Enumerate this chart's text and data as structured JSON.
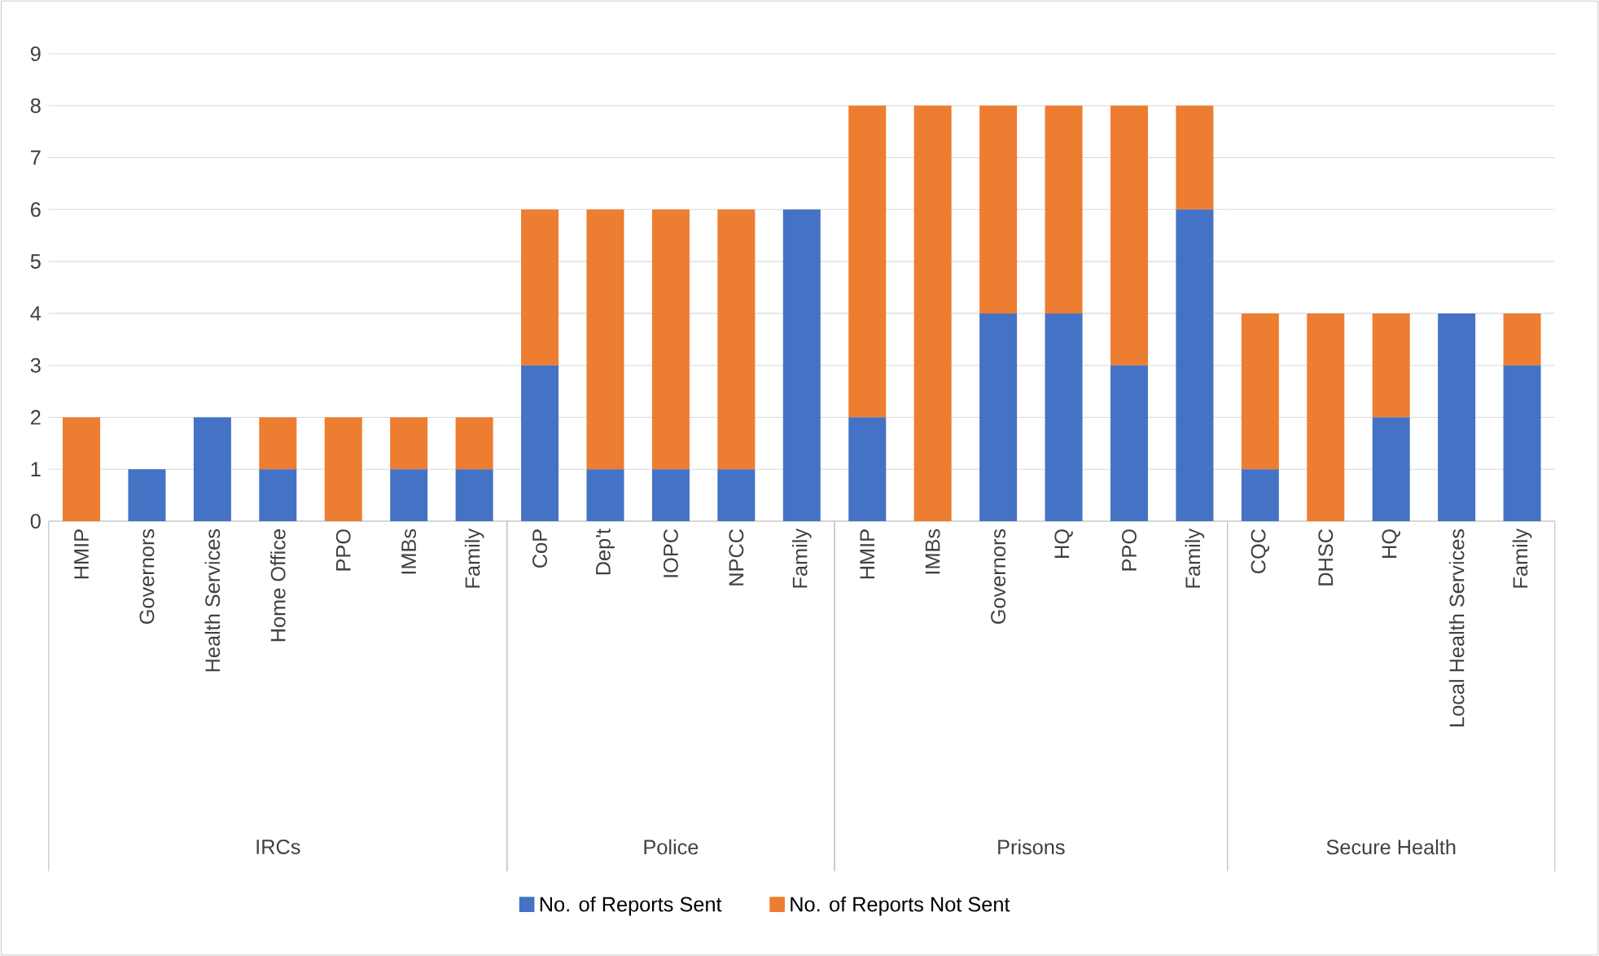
{
  "chart_data": [
    {
      "type": "bar",
      "stacked": true,
      "xlabel": "IRCs",
      "categories": [
        "HMIP",
        "Governors",
        "Health Services",
        "Home Office",
        "PPO",
        "IMBs",
        "Family"
      ],
      "series": [
        {
          "color": "#4472c4",
          "values": [
            0,
            1,
            2,
            1,
            0,
            1,
            1
          ]
        },
        {
          "color": "#ed7d31",
          "values": [
            2,
            0,
            0,
            1,
            2,
            1,
            1
          ]
        }
      ],
      "ylim": [
        0,
        9
      ],
      "yticks": [
        0,
        1,
        2,
        3,
        4,
        5,
        6,
        7,
        8,
        9
      ],
      "grid": "y"
    },
    {
      "type": "bar",
      "stacked": true,
      "xlabel": "Police",
      "categories": [
        "CoP",
        "Dep't",
        "IOPC",
        "NPCC",
        "Family"
      ],
      "series": [
        {
          "name": "No. of Reports Sent",
          "color": "#4472c4",
          "values": [
            3,
            1,
            1,
            1,
            6
          ]
        },
        {
          "name": "No. of Reports Not Sent",
          "color": "#ed7d31",
          "values": [
            3,
            5,
            5,
            5,
            0
          ]
        }
      ],
      "ylim": [
        0,
        9
      ],
      "yticks": [
        0,
        1,
        2,
        3,
        4,
        5,
        6,
        7,
        8,
        9
      ],
      "grid": "y",
      "legend": "bottom",
      "tick_labels": "x"
    },
    {
      "type": "bar",
      "stacked": true,
      "xlabel": "Prisons",
      "categories": [
        "HMIP",
        "IMBs",
        "Governors",
        "HQ",
        "PPO",
        "Family"
      ],
      "series": [
        {
          "color": "#4472c4",
          "values": [
            2,
            0,
            4,
            4,
            3,
            6
          ]
        },
        {
          "color": "#ed7d31",
          "values": [
            6,
            8,
            4,
            4,
            5,
            2
          ]
        }
      ],
      "ylim": [
        0,
        9
      ],
      "yticks": [
        0,
        1,
        2,
        3,
        4,
        5,
        6,
        7,
        8,
        9
      ],
      "grid": "y",
      "tick_labels": "x"
    },
    {
      "type": "bar",
      "stacked": true,
      "xlabel": "Secure Health",
      "categories": [
        "CQC",
        "DHSC",
        "HQ",
        "Local Health Services",
        "Family"
      ],
      "series": [
        {
          "color": "#4472c4",
          "values": [
            1,
            0,
            2,
            4,
            3
          ]
        },
        {
          "color": "#ed7d31",
          "values": [
            3,
            4,
            2,
            0,
            1
          ]
        }
      ],
      "ylim": [
        0,
        9
      ],
      "yticks": [
        0,
        1,
        2,
        3,
        4,
        5,
        6,
        7,
        8,
        9
      ],
      "grid": "y",
      "tick_labels": "x"
    }
  ]
}
